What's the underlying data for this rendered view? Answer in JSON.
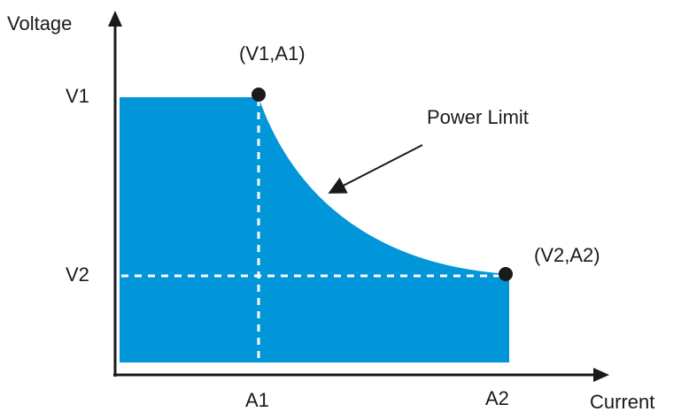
{
  "diagram": {
    "axis_y_label": "Voltage",
    "axis_x_label": "Current",
    "ticks_y": [
      "V1",
      "V2"
    ],
    "ticks_x": [
      "A1",
      "A2"
    ],
    "point1_label": "(V1,A1)",
    "point2_label": "(V2,A2)",
    "curve_label": "Power Limit",
    "colors": {
      "fill": "#0096d9",
      "axis": "#1a1a1a",
      "dashed": "#ffffff",
      "point": "#1a1a1a"
    }
  }
}
